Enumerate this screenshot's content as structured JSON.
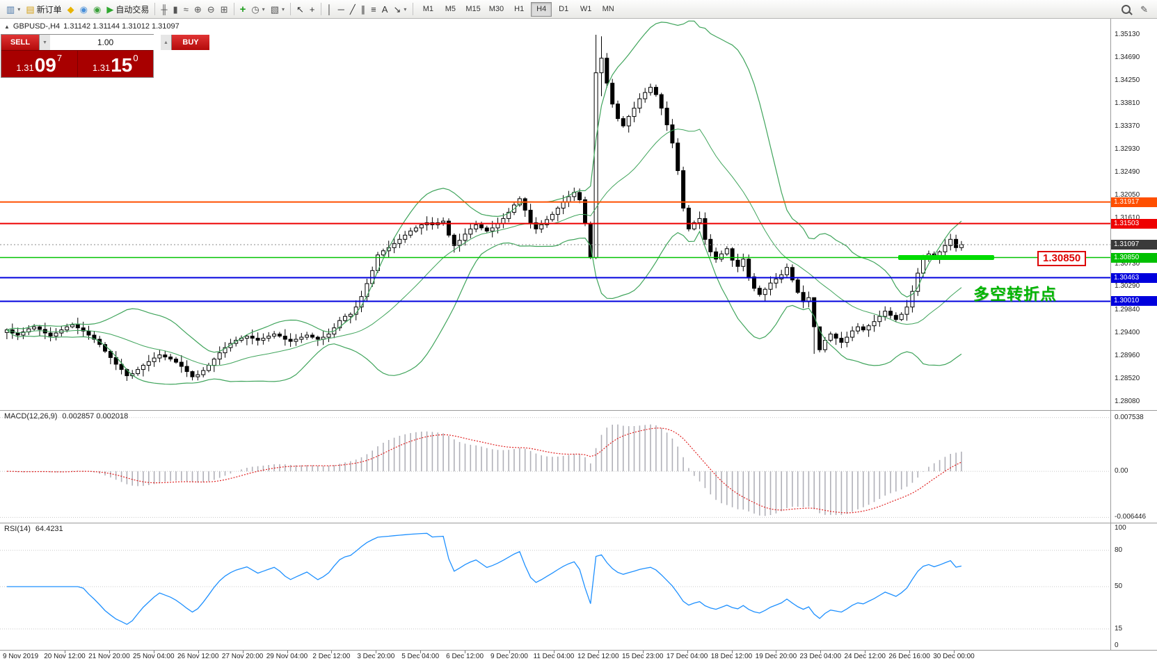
{
  "icons": {
    "collapse_triangle": "▲",
    "spinner_up": "▲",
    "spinner_down": "▼",
    "dropdown_arrow": "▾"
  },
  "toolbar": {
    "groups": [
      {
        "items": [
          {
            "name": "new-chart-icon",
            "glyph": "▥",
            "color": "#4a76a8",
            "dropdown": true
          },
          {
            "name": "new-order-button",
            "glyph": "▤",
            "color": "#d4a017",
            "label": "新订单"
          },
          {
            "name": "alerts-icon",
            "glyph": "◆",
            "color": "#e8b400"
          },
          {
            "name": "market-watch-icon",
            "glyph": "◉",
            "color": "#4a90d9"
          },
          {
            "name": "help-icon",
            "glyph": "◉",
            "color": "#3aa03a"
          },
          {
            "name": "autotrading-button",
            "glyph": "▶",
            "color": "#2fa82f",
            "label": "自动交易"
          }
        ]
      },
      {
        "items": [
          {
            "name": "bar-chart-mode-icon",
            "glyph": "╫",
            "color": "#555"
          },
          {
            "name": "candlestick-mode-icon",
            "glyph": "▮",
            "color": "#555"
          },
          {
            "name": "line-chart-mode-icon",
            "glyph": "≈",
            "color": "#555"
          },
          {
            "name": "zoom-in-icon",
            "glyph": "⊕",
            "color": "#555"
          },
          {
            "name": "zoom-out-icon",
            "glyph": "⊖",
            "color": "#555"
          },
          {
            "name": "tile-windows-icon",
            "glyph": "⊞",
            "color": "#555"
          }
        ]
      },
      {
        "items": [
          {
            "name": "indicators-icon",
            "glyph": "+",
            "color": "#1f9e1f",
            "bold": true
          },
          {
            "name": "periods-icon",
            "glyph": "◷",
            "color": "#555",
            "dropdown": true
          },
          {
            "name": "templates-icon",
            "glyph": "▧",
            "color": "#555",
            "dropdown": true
          }
        ]
      },
      {
        "items": [
          {
            "name": "cursor-icon",
            "glyph": "↖",
            "color": "#333"
          },
          {
            "name": "crosshair-icon",
            "glyph": "+",
            "color": "#333"
          }
        ]
      },
      {
        "items": [
          {
            "name": "vertical-line-icon",
            "glyph": "│",
            "color": "#333"
          },
          {
            "name": "horizontal-line-icon",
            "glyph": "─",
            "color": "#333"
          },
          {
            "name": "trendline-icon",
            "glyph": "╱",
            "color": "#333"
          },
          {
            "name": "channel-icon",
            "glyph": "∥",
            "color": "#333"
          },
          {
            "name": "fibonacci-icon",
            "glyph": "≡",
            "color": "#333"
          },
          {
            "name": "text-icon",
            "glyph": "A",
            "color": "#333"
          },
          {
            "name": "arrow-tools-icon",
            "glyph": "↘",
            "color": "#333",
            "dropdown": true
          }
        ]
      }
    ],
    "timeframes": [
      "M1",
      "M5",
      "M15",
      "M30",
      "H1",
      "H4",
      "D1",
      "W1",
      "MN"
    ],
    "active_timeframe": "H4",
    "right_icons": [
      {
        "name": "search-icon",
        "css": "magnifier"
      },
      {
        "name": "edit-icon",
        "glyph": "✎",
        "color": "#555"
      }
    ]
  },
  "chart": {
    "title": "GBPUSD-,H4",
    "ohlc": "1.31142 1.31144 1.31012 1.31097"
  },
  "trade_panel": {
    "sell_label": "SELL",
    "buy_label": "BUY",
    "volume": "1.00",
    "sell_price": {
      "base": "1.31",
      "big": "09",
      "sup": "7"
    },
    "buy_price": {
      "base": "1.31",
      "big": "15",
      "sup": "0"
    }
  },
  "price_axis": {
    "labels": [
      "1.35130",
      "1.34690",
      "1.34250",
      "1.33810",
      "1.33370",
      "1.32930",
      "1.32490",
      "1.32050",
      "1.31610",
      "1.30730",
      "1.30290",
      "1.29840",
      "1.29400",
      "1.28960",
      "1.28520",
      "1.28080"
    ],
    "badges": [
      {
        "text": "1.31917",
        "color": "#ff4f00"
      },
      {
        "text": "1.31503",
        "color": "#ee0000"
      },
      {
        "text": "1.31097",
        "color": "#3a3a3a"
      },
      {
        "text": "1.30850",
        "color": "#00c000"
      },
      {
        "text": "1.30463",
        "color": "#0000dd"
      },
      {
        "text": "1.30010",
        "color": "#0000dd"
      }
    ]
  },
  "hlines": [
    {
      "price": 1.31917,
      "color": "#ff4f00",
      "width": 2
    },
    {
      "price": 1.31503,
      "color": "#ee0000",
      "width": 2
    },
    {
      "price": 1.3085,
      "color": "#00c200",
      "width": 1.5
    },
    {
      "price": 1.30463,
      "color": "#0000dd",
      "width": 2
    },
    {
      "price": 1.3001,
      "color": "#0000dd",
      "width": 2
    }
  ],
  "annotations": {
    "callout": "1.30850",
    "note": "多空转折点",
    "highlight_price": 1.3085
  },
  "macd": {
    "title": "MACD(12,26,9)",
    "values": "0.002857 0.002018",
    "axis_labels": [
      "0.007538",
      "0.00",
      "-0.006446"
    ]
  },
  "rsi": {
    "title": "RSI(14)",
    "value": "64.4231",
    "axis_labels": [
      "100",
      "80",
      "50",
      "15",
      "0"
    ]
  },
  "chart_data": {
    "type": "candlestick",
    "symbol": "GBPUSD-",
    "timeframe": "H4",
    "y_axis_range": [
      1.2808,
      1.3513
    ],
    "current_bar": {
      "open": 1.31142,
      "high": 1.31144,
      "low": 1.31012,
      "close": 1.31097
    },
    "closes": [
      1.2946,
      1.294,
      1.2936,
      1.2942,
      1.2948,
      1.2952,
      1.2947,
      1.294,
      1.2934,
      1.294,
      1.2946,
      1.2952,
      1.2956,
      1.295,
      1.2944,
      1.2936,
      1.2928,
      1.2918,
      1.2905,
      1.2893,
      1.288,
      1.287,
      1.2858,
      1.2862,
      1.287,
      1.2878,
      1.2885,
      1.2892,
      1.2898,
      1.2894,
      1.289,
      1.2884,
      1.2876,
      1.2866,
      1.2856,
      1.286,
      1.2868,
      1.2878,
      1.289,
      1.2902,
      1.2912,
      1.292,
      1.2926,
      1.293,
      1.2934,
      1.293,
      1.2926,
      1.293,
      1.2934,
      1.2938,
      1.2934,
      1.2928,
      1.2924,
      1.2928,
      1.2932,
      1.2936,
      1.2932,
      1.2928,
      1.2932,
      1.2938,
      1.295,
      1.2964,
      1.2972,
      1.2976,
      1.299,
      1.301,
      1.3035,
      1.306,
      1.309,
      1.3098,
      1.3104,
      1.3112,
      1.312,
      1.3128,
      1.3136,
      1.3142,
      1.3148,
      1.3152,
      1.3148,
      1.3152,
      1.3155,
      1.3128,
      1.3108,
      1.3118,
      1.313,
      1.314,
      1.3148,
      1.3142,
      1.3136,
      1.3142,
      1.315,
      1.316,
      1.3172,
      1.3186,
      1.3198,
      1.3176,
      1.3152,
      1.314,
      1.3148,
      1.3158,
      1.3168,
      1.318,
      1.3192,
      1.3202,
      1.321,
      1.3196,
      1.315,
      1.3085,
      1.344,
      1.3468,
      1.342,
      1.338,
      1.3352,
      1.3338,
      1.3356,
      1.3372,
      1.339,
      1.3402,
      1.3412,
      1.3398,
      1.3372,
      1.334,
      1.3305,
      1.3252,
      1.318,
      1.314,
      1.3152,
      1.316,
      1.312,
      1.3096,
      1.3082,
      1.3092,
      1.3102,
      1.308,
      1.3068,
      1.3082,
      1.3048,
      1.3026,
      1.3014,
      1.3024,
      1.3036,
      1.3044,
      1.3052,
      1.3066,
      1.3042,
      1.3018,
      1.3,
      1.3008,
      1.2952,
      1.2908,
      1.2926,
      1.2938,
      1.293,
      1.2922,
      1.2932,
      1.2944,
      1.2952,
      1.2946,
      1.2954,
      1.2962,
      1.2972,
      1.2982,
      1.2974,
      1.2966,
      1.2976,
      1.299,
      1.302,
      1.3055,
      1.3082,
      1.3092,
      1.3086,
      1.3096,
      1.3108,
      1.312,
      1.3104,
      1.31097
    ],
    "wick_overrides": {
      "22": [
        1.2872,
        1.2848
      ],
      "34": [
        1.2868,
        1.2849
      ],
      "108": [
        1.3513,
        1.3082
      ],
      "109": [
        1.351,
        1.3395
      ],
      "148": [
        1.2958,
        1.29
      ],
      "149": [
        1.293,
        1.2903
      ]
    },
    "indicators": [
      {
        "name": "Bollinger Bands",
        "period": 20,
        "deviation": 2,
        "color": "#3fa45b"
      },
      {
        "name": "MACD",
        "params": [
          12,
          26,
          9
        ],
        "current": [
          0.002857,
          0.002018
        ],
        "range": [
          -0.006446,
          0.007538
        ]
      },
      {
        "name": "RSI",
        "period": 14,
        "current": 64.4231,
        "levels": [
          80,
          50,
          15
        ]
      }
    ],
    "x_axis_labels": [
      "9 Nov 2019",
      "20 Nov 12:00",
      "21 Nov 20:00",
      "25 Nov 04:00",
      "26 Nov 12:00",
      "27 Nov 20:00",
      "29 Nov 04:00",
      "2 Dec 12:00",
      "3 Dec 20:00",
      "5 Dec 04:00",
      "6 Dec 12:00",
      "9 Dec 20:00",
      "11 Dec 04:00",
      "12 Dec 12:00",
      "15 Dec 23:00",
      "17 Dec 04:00",
      "18 Dec 12:00",
      "19 Dec 20:00",
      "23 Dec 04:00",
      "24 Dec 12:00",
      "26 Dec 16:00",
      "30 Dec 00:00"
    ]
  }
}
